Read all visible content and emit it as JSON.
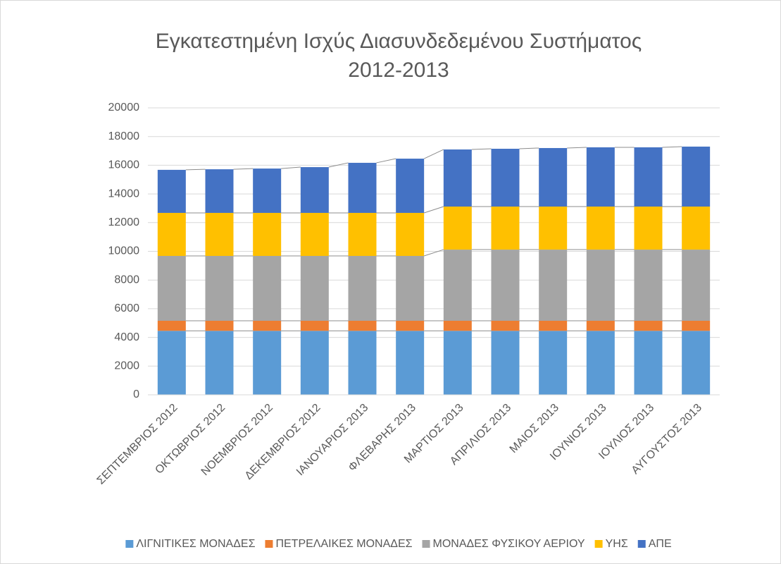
{
  "chart_data": {
    "type": "stacked_bar",
    "title": [
      "Εγκατεστημένη Ισχύς Διασυνδεδεμένου Συστήματος",
      "2012-2013"
    ],
    "categories": [
      "ΣΕΠΤΕΜΒΡΙΟΣ 2012",
      "ΟΚΤΩΒΡΙΟΣ 2012",
      "ΝΟΕΜΒΡΙΟΣ 2012",
      "ΔΕΚΕΜΒΡΙΟΣ 2012",
      "ΙΑΝΟΥΑΡΙΟΣ 2013",
      "ΦΛΕΒΑΡΗΣ 2013",
      "ΜΑΡΤΙΟΣ 2013",
      "ΑΠΡΙΛΙΟΣ 2013",
      "ΜΑΙΟΣ 2013",
      "ΙΟΥΝΙΟΣ 2013",
      "ΙΟΥΛΙΟΣ 2013",
      "ΑΥΓΟΥΣΤΟΣ 2013"
    ],
    "series": [
      {
        "name": "ΛΙΓΝΙΤΙΚΕΣ ΜΟΝΑΔΕΣ",
        "color": "#5b9bd5",
        "values": [
          4460,
          4460,
          4460,
          4460,
          4460,
          4460,
          4460,
          4460,
          4460,
          4460,
          4460,
          4460
        ]
      },
      {
        "name": "ΠΕΤΡΕΛΑΙΚΕΣ ΜΟΝΑΔΕΣ",
        "color": "#ed7d31",
        "values": [
          700,
          700,
          700,
          700,
          700,
          700,
          700,
          700,
          700,
          700,
          700,
          700
        ]
      },
      {
        "name": "ΜΟΝΑΔΕΣ ΦΥΣΙΚΟΥ ΑΕΡΙΟΥ",
        "color": "#a5a5a5",
        "values": [
          4520,
          4520,
          4520,
          4520,
          4520,
          4520,
          4960,
          4960,
          4960,
          4960,
          4960,
          4960
        ]
      },
      {
        "name": "ΥΗΣ",
        "color": "#ffc000",
        "values": [
          3000,
          3000,
          3000,
          3000,
          3000,
          3000,
          3000,
          3000,
          3000,
          3000,
          3000,
          3000
        ]
      },
      {
        "name": "ΑΠΕ",
        "color": "#4472c4",
        "values": [
          3000,
          3040,
          3090,
          3190,
          3490,
          3780,
          3980,
          4030,
          4080,
          4130,
          4130,
          4180
        ]
      }
    ],
    "ylim": [
      0,
      20000
    ],
    "yticks": [
      0,
      2000,
      4000,
      6000,
      8000,
      10000,
      12000,
      14000,
      16000,
      18000,
      20000
    ],
    "grid": true,
    "series_lines": true,
    "legend": "bottom"
  }
}
